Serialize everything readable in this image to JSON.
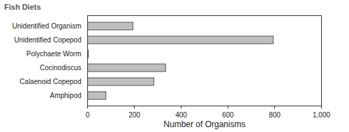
{
  "chart_data": {
    "type": "bar",
    "title": "Fish Diets",
    "orientation": "horizontal",
    "categories": [
      "Unidentified Organism",
      "Unidentified Copepod",
      "Polychaete Worm",
      "Cocinodiscus",
      "Calaenoid Copepod",
      "Amphipod"
    ],
    "values": [
      195,
      795,
      5,
      335,
      285,
      80
    ],
    "color": "#bfbfbf",
    "x_label": "Number of Organisms",
    "xlim": [
      0,
      1000
    ],
    "xticks": [
      0,
      200,
      400,
      600,
      800,
      1000
    ],
    "grid": false
  }
}
